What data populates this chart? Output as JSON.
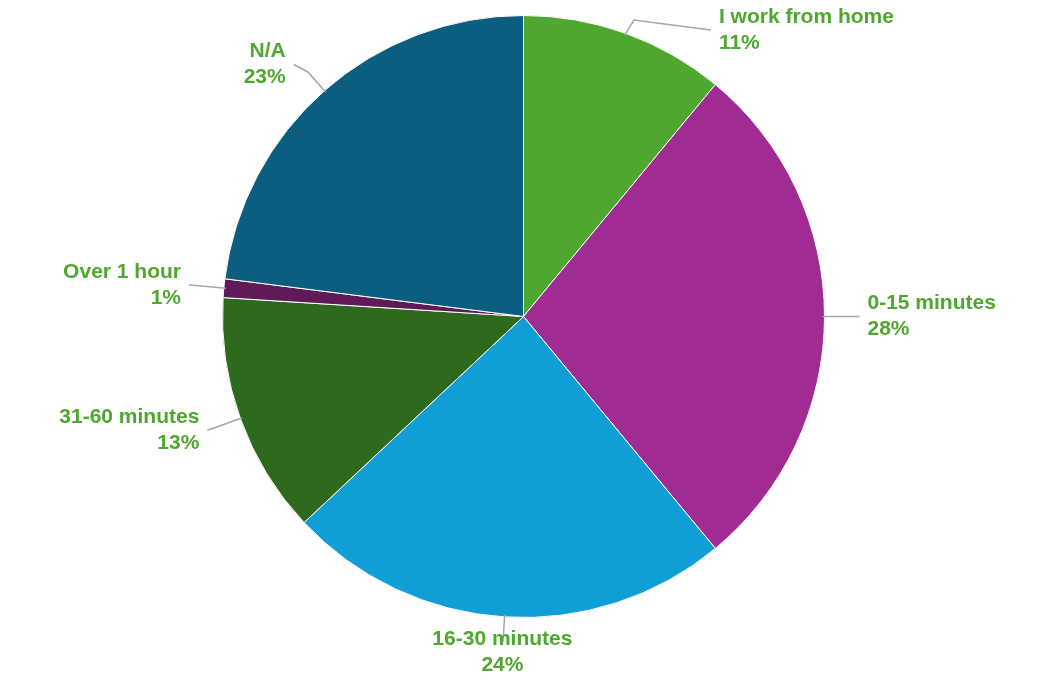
{
  "chart_data": {
    "type": "pie",
    "categories": [
      "I work from home",
      "0-15 minutes",
      "16-30 minutes",
      "31-60 minutes",
      "Over 1 hour",
      "N/A"
    ],
    "values": [
      11,
      28,
      24,
      13,
      1,
      23
    ],
    "value_labels": [
      "11%",
      "28%",
      "24%",
      "13%",
      "1%",
      "23%"
    ],
    "colors": [
      "#4ea72e",
      "#a02b93",
      "#0f9ed5",
      "#2e6a1d",
      "#5e1b58",
      "#0b5e80"
    ],
    "legend": false
  }
}
